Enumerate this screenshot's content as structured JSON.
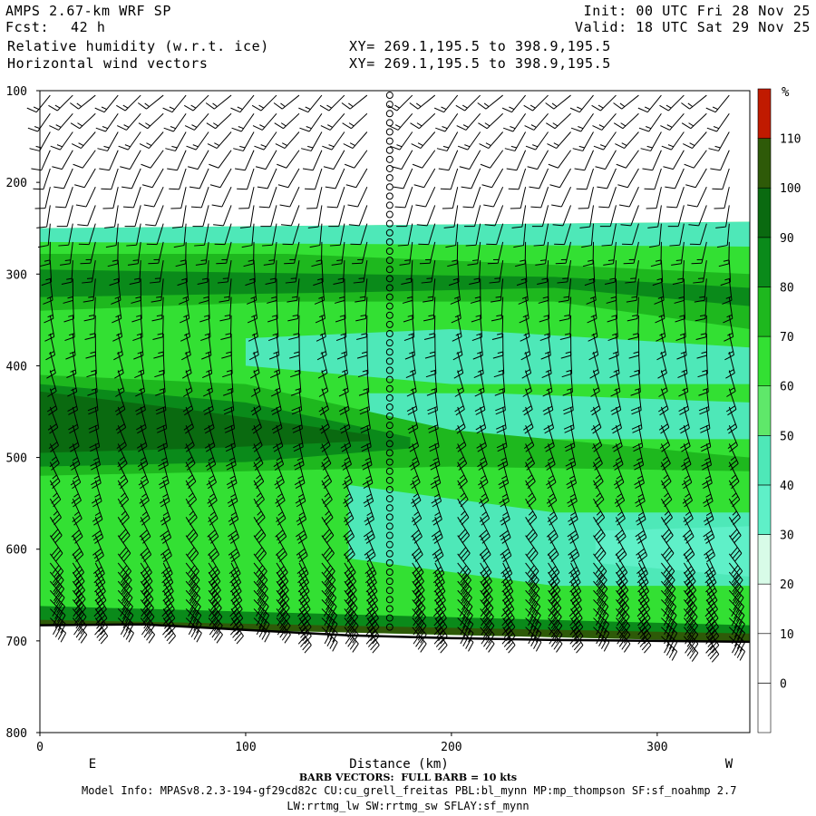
{
  "header": {
    "model": "AMPS 2.67-km WRF SP",
    "fcst_label": "Fcst:",
    "fcst_value": "42 h",
    "field1": "Relative humidity (w.r.t. ice)",
    "field2": "Horizontal wind vectors",
    "xy1": "XY= 269.1,195.5 to 398.9,195.5",
    "xy2": "XY= 269.1,195.5 to 398.9,195.5",
    "init": "Init: 00 UTC Fri 28 Nov 25",
    "valid": "Valid: 18 UTC Sat 29 Nov 25"
  },
  "footer": {
    "barb_note": "BARB VECTORS:  FULL BARB = 10 kts",
    "model_info": "Model Info: MPASv8.2.3-194-gf29cd82c CU:cu_grell_freitas PBL:bl_mynn MP:mp_thompson SF:sf_noahmp 2.7",
    "model_info2": "LW:rrtmg_lw SW:rrtmg_sw SFLAY:sf_mynn"
  },
  "chart_data": {
    "type": "heatmap",
    "title": "Relative humidity (w.r.t. ice)",
    "xlabel": "Distance (km)",
    "ylabel": "",
    "xlim": [
      0,
      345
    ],
    "ylim": [
      800,
      100
    ],
    "x_ticks": [
      0,
      100,
      200,
      300
    ],
    "y_ticks": [
      100,
      200,
      300,
      400,
      500,
      600,
      700,
      800
    ],
    "x_endpoint_labels": {
      "left": "E",
      "right": "W"
    },
    "colorbar": {
      "unit": "%",
      "levels": [
        0,
        10,
        20,
        30,
        40,
        50,
        60,
        70,
        80,
        90,
        100,
        110
      ],
      "colors": [
        "#ffffff",
        "#ffffff",
        "#ffffff",
        "#d8fbe8",
        "#5ff0c8",
        "#4ee8b8",
        "#5fe86a",
        "#33e033",
        "#1eb81e",
        "#0a8a1a",
        "#0a6a10",
        "#2e5a08",
        "#c01a00"
      ]
    },
    "terrain_pressure": [
      {
        "x": 0,
        "p": 683
      },
      {
        "x": 50,
        "p": 682
      },
      {
        "x": 100,
        "p": 688
      },
      {
        "x": 150,
        "p": 694
      },
      {
        "x": 200,
        "p": 697
      },
      {
        "x": 250,
        "p": 699
      },
      {
        "x": 300,
        "p": 700
      },
      {
        "x": 345,
        "p": 701
      }
    ],
    "rh_bands": [
      {
        "rh": 65,
        "top": [
          {
            "x": 0,
            "p": 250
          },
          {
            "x": 345,
            "p": 243
          }
        ],
        "bottom": [
          {
            "x": 0,
            "p": 683
          },
          {
            "x": 345,
            "p": 701
          }
        ]
      },
      {
        "rh": 45,
        "top": [
          {
            "x": 0,
            "p": 250
          },
          {
            "x": 345,
            "p": 243
          }
        ],
        "bottom": [
          {
            "x": 0,
            "p": 265
          },
          {
            "x": 345,
            "p": 270
          }
        ]
      },
      {
        "rh": 75,
        "top": [
          {
            "x": 0,
            "p": 278
          },
          {
            "x": 120,
            "p": 278
          },
          {
            "x": 250,
            "p": 290
          },
          {
            "x": 345,
            "p": 300
          }
        ],
        "bottom": [
          {
            "x": 0,
            "p": 340
          },
          {
            "x": 120,
            "p": 330
          },
          {
            "x": 250,
            "p": 330
          },
          {
            "x": 345,
            "p": 360
          }
        ]
      },
      {
        "rh": 85,
        "top": [
          {
            "x": 0,
            "p": 295
          },
          {
            "x": 150,
            "p": 300
          },
          {
            "x": 250,
            "p": 303
          },
          {
            "x": 345,
            "p": 315
          }
        ],
        "bottom": [
          {
            "x": 0,
            "p": 325
          },
          {
            "x": 150,
            "p": 320
          },
          {
            "x": 250,
            "p": 315
          },
          {
            "x": 345,
            "p": 335
          }
        ]
      },
      {
        "rh": 45,
        "top": [
          {
            "x": 100,
            "p": 370
          },
          {
            "x": 200,
            "p": 360
          },
          {
            "x": 345,
            "p": 380
          }
        ],
        "bottom": [
          {
            "x": 100,
            "p": 400
          },
          {
            "x": 200,
            "p": 420
          },
          {
            "x": 345,
            "p": 420
          }
        ]
      },
      {
        "rh": 45,
        "top": [
          {
            "x": 160,
            "p": 430
          },
          {
            "x": 220,
            "p": 430
          },
          {
            "x": 345,
            "p": 440
          }
        ],
        "bottom": [
          {
            "x": 160,
            "p": 470
          },
          {
            "x": 220,
            "p": 480
          },
          {
            "x": 345,
            "p": 480
          }
        ]
      },
      {
        "rh": 75,
        "top": [
          {
            "x": 0,
            "p": 410
          },
          {
            "x": 100,
            "p": 420
          },
          {
            "x": 200,
            "p": 470
          },
          {
            "x": 345,
            "p": 500
          }
        ],
        "bottom": [
          {
            "x": 0,
            "p": 520
          },
          {
            "x": 100,
            "p": 515
          },
          {
            "x": 200,
            "p": 510
          },
          {
            "x": 345,
            "p": 515
          }
        ]
      },
      {
        "rh": 85,
        "top": [
          {
            "x": 0,
            "p": 420
          },
          {
            "x": 100,
            "p": 440
          },
          {
            "x": 180,
            "p": 478
          }
        ],
        "bottom": [
          {
            "x": 0,
            "p": 510
          },
          {
            "x": 100,
            "p": 505
          },
          {
            "x": 180,
            "p": 490
          }
        ]
      },
      {
        "rh": 95,
        "top": [
          {
            "x": 0,
            "p": 428
          },
          {
            "x": 80,
            "p": 450
          },
          {
            "x": 160,
            "p": 475
          }
        ],
        "bottom": [
          {
            "x": 0,
            "p": 495
          },
          {
            "x": 80,
            "p": 490
          },
          {
            "x": 160,
            "p": 482
          }
        ]
      },
      {
        "rh": 45,
        "top": [
          {
            "x": 150,
            "p": 530
          },
          {
            "x": 250,
            "p": 560
          },
          {
            "x": 345,
            "p": 560
          }
        ],
        "bottom": [
          {
            "x": 150,
            "p": 610
          },
          {
            "x": 250,
            "p": 640
          },
          {
            "x": 345,
            "p": 640
          }
        ]
      },
      {
        "rh": 35,
        "top": [
          {
            "x": 270,
            "p": 580
          },
          {
            "x": 345,
            "p": 575
          }
        ],
        "bottom": [
          {
            "x": 270,
            "p": 615
          },
          {
            "x": 345,
            "p": 630
          }
        ]
      },
      {
        "rh": 85,
        "top": [
          {
            "x": 0,
            "p": 662
          },
          {
            "x": 345,
            "p": 683
          }
        ],
        "bottom": [
          {
            "x": 0,
            "p": 680
          },
          {
            "x": 345,
            "p": 700
          }
        ]
      },
      {
        "rh": 105,
        "top": [
          {
            "x": 0,
            "p": 677
          },
          {
            "x": 345,
            "p": 692
          }
        ],
        "bottom": [
          {
            "x": 0,
            "p": 683
          },
          {
            "x": 345,
            "p": 701
          }
        ]
      }
    ],
    "wind_barbs": [
      {
        "p": 110,
        "dir_deg": 225,
        "speed_kts": 15
      },
      {
        "p": 200,
        "dir_deg": 200,
        "speed_kts": 10
      },
      {
        "p": 300,
        "dir_deg": 180,
        "speed_kts": 15
      },
      {
        "p": 400,
        "dir_deg": 170,
        "speed_kts": 15
      },
      {
        "p": 500,
        "dir_deg": 160,
        "speed_kts": 25
      },
      {
        "p": 600,
        "dir_deg": 150,
        "speed_kts": 30
      },
      {
        "p": 670,
        "dir_deg": 140,
        "speed_kts": 40
      }
    ],
    "calm_column_km": 173
  }
}
